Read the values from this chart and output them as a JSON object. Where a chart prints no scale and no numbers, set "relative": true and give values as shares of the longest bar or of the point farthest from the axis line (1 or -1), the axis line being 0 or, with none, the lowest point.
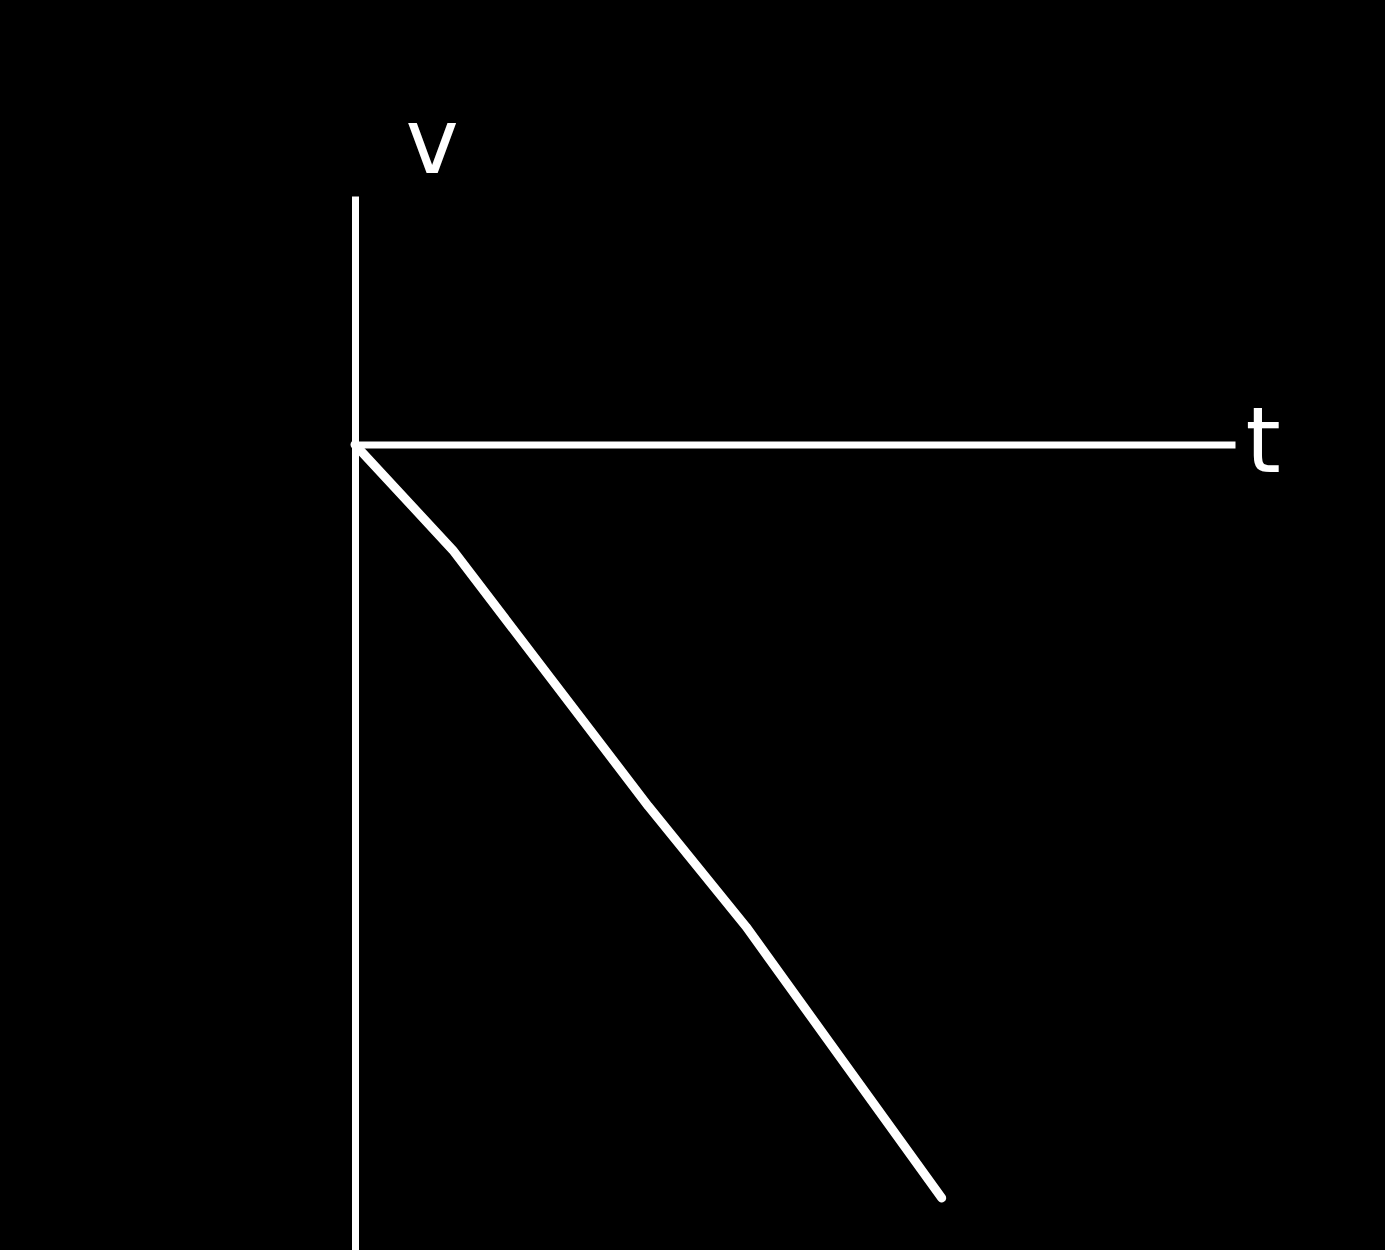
{
  "chart_data": {
    "type": "line",
    "relative": true,
    "xlabel": "t",
    "ylabel": "v",
    "categories": [
      null,
      null,
      null,
      null,
      null,
      null,
      null
    ],
    "series": [
      {
        "color": "#ffffff",
        "values": [
          0,
          -0.14,
          -0.31,
          -0.48,
          -0.64,
          -0.82,
          -1
        ]
      }
    ],
    "line_style": "solid",
    "grid": false
  }
}
